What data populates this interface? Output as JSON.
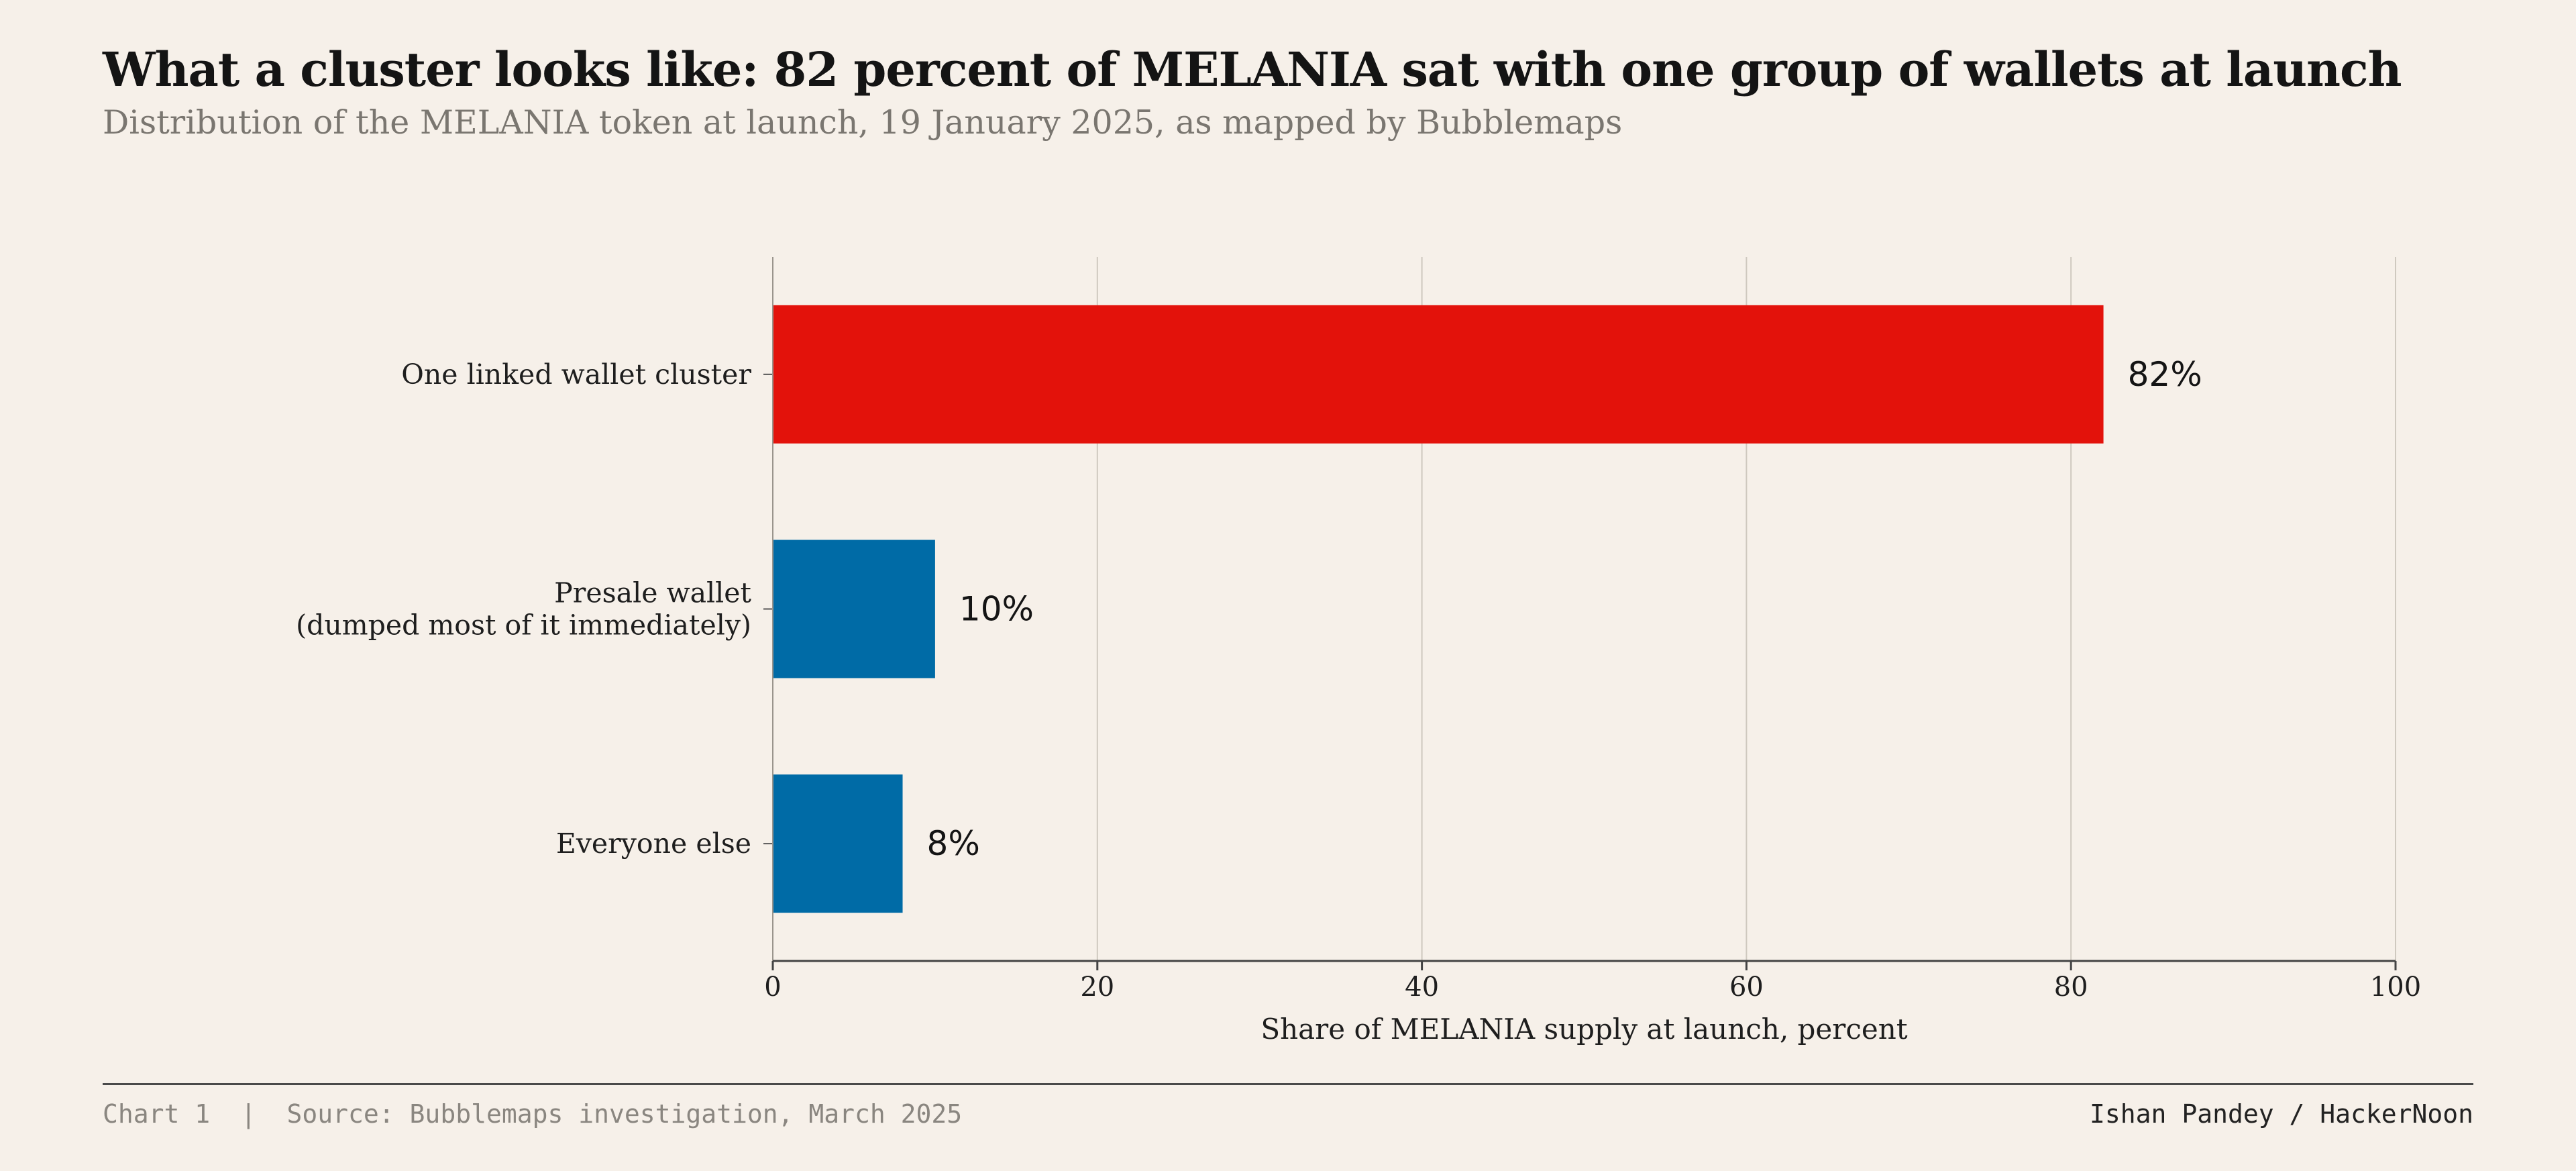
{
  "header": {
    "title": "What a cluster looks like: 82 percent of MELANIA sat with one group of wallets at launch",
    "subtitle": "Distribution of the MELANIA token at launch, 19 January 2025, as mapped by Bubblemaps"
  },
  "chart_data": {
    "type": "bar",
    "orientation": "horizontal",
    "categories": [
      [
        "One linked wallet cluster"
      ],
      [
        "Presale wallet",
        "(dumped most of it immediately)"
      ],
      [
        "Everyone else"
      ]
    ],
    "values": [
      82,
      10,
      8
    ],
    "value_labels": [
      "82%",
      "10%",
      "8%"
    ],
    "colors": [
      "#e3120b",
      "#006ba6",
      "#006ba6"
    ],
    "xlabel": "Share of MELANIA supply at launch, percent",
    "xlim": [
      0,
      100
    ],
    "xticks": [
      0,
      20,
      40,
      60,
      80,
      100
    ],
    "grid": true
  },
  "footer": {
    "left": "Chart 1  |  Source: Bubblemaps investigation, March 2025",
    "right": "Ishan Pandey / HackerNoon"
  }
}
